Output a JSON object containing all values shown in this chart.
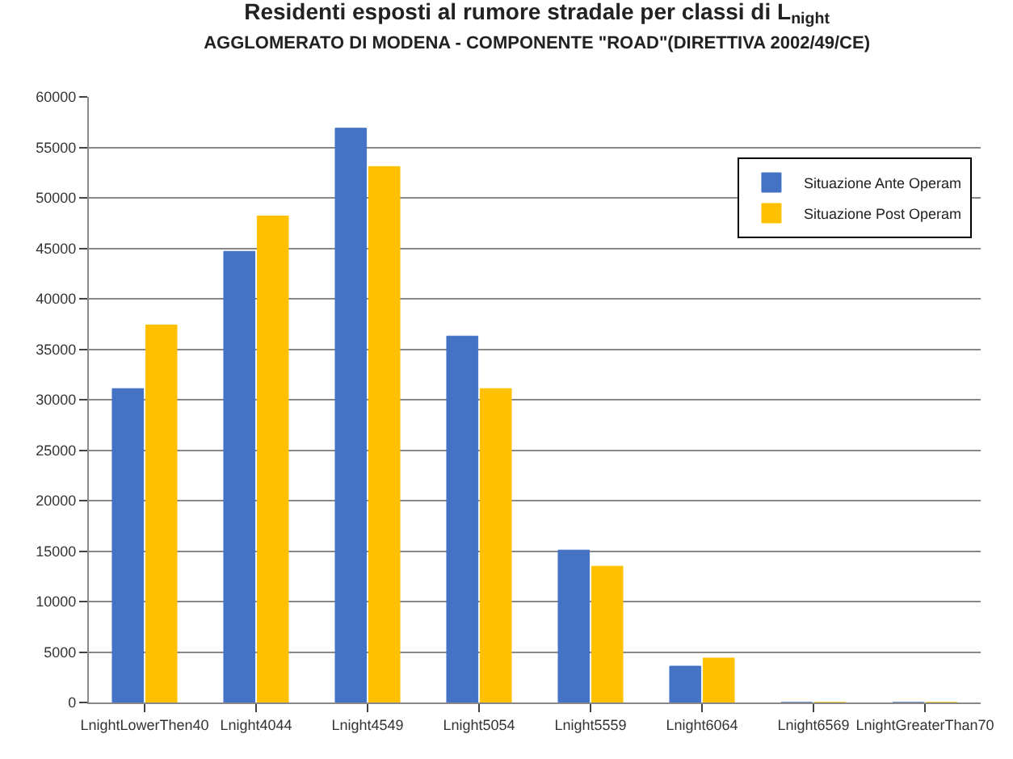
{
  "chart_data": {
    "type": "bar",
    "title": "Residenti esposti al rumore stradale per classi di L$_{night}$",
    "subtitle": "AGGLOMERATO DI MODENA - COMPONENTE \"ROAD\"(DIRETTIVA 2002/49/CE)",
    "categories": [
      "LnightLowerThen40",
      "Lnight4044",
      "Lnight4549",
      "Lnight5054",
      "Lnight5559",
      "Lnight6064",
      "Lnight6569",
      "LnightGreaterThan70"
    ],
    "series": [
      {
        "name": "Situazione Ante Operam",
        "color": "#4472c4",
        "values": [
          31100,
          44700,
          56900,
          36300,
          15100,
          3600,
          0,
          0
        ]
      },
      {
        "name": "Situazione Post Operam",
        "color": "#ffc000",
        "values": [
          37400,
          48200,
          53100,
          31100,
          13500,
          4400,
          0,
          0
        ]
      }
    ],
    "ylim": [
      0,
      60000
    ],
    "yticks": [
      0,
      5000,
      10000,
      15000,
      20000,
      25000,
      30000,
      35000,
      40000,
      45000,
      50000,
      55000,
      60000
    ],
    "grid": "y",
    "legend": "top right"
  }
}
